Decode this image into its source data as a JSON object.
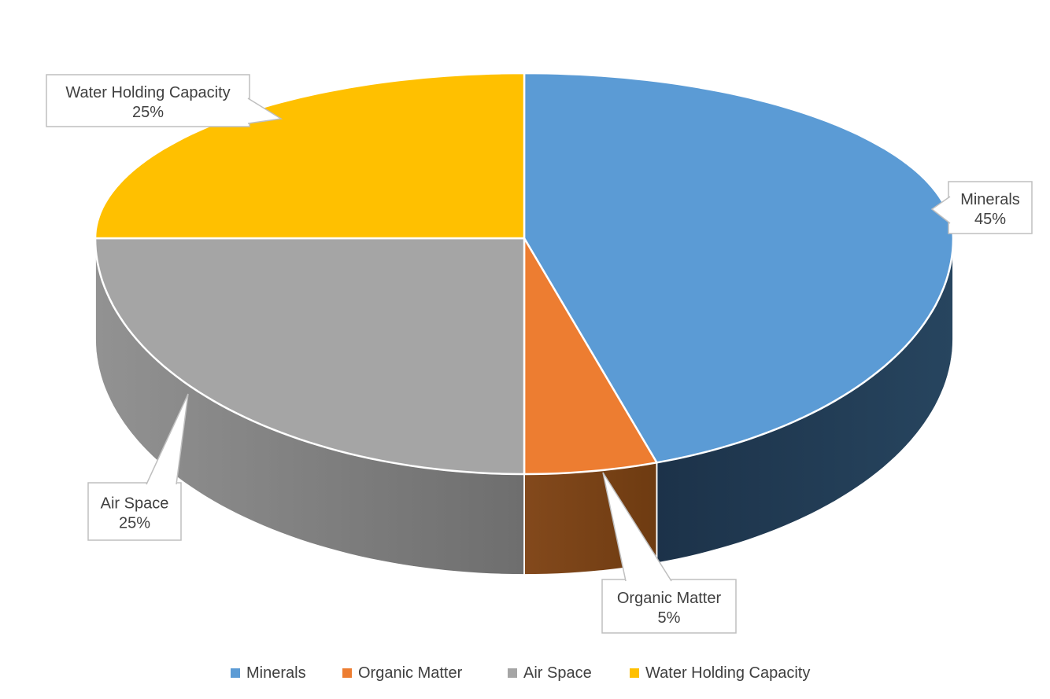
{
  "chart_data": {
    "type": "pie",
    "style": "3d",
    "title": "",
    "categories": [
      "Minerals",
      "Organic Matter",
      "Air Space",
      "Water Holding Capacity"
    ],
    "values": [
      45,
      5,
      25,
      25
    ],
    "value_unit": "%",
    "start_angle_deg": 0,
    "direction": "clockwise",
    "colors": [
      "#5B9BD5",
      "#ED7D31",
      "#A5A5A5",
      "#FFC000"
    ],
    "side_colors": [
      "#1F3850",
      "#7A441A",
      "#7E7E7E",
      null
    ],
    "data_labels": [
      {
        "category": "Minerals",
        "value_label": "45%"
      },
      {
        "category": "Organic Matter",
        "value_label": "5%"
      },
      {
        "category": "Air Space",
        "value_label": "25%"
      },
      {
        "category": "Water Holding Capacity",
        "value_label": "25%"
      }
    ],
    "legend": {
      "position": "bottom",
      "entries": [
        "Minerals",
        "Organic Matter",
        "Air Space",
        "Water Holding Capacity"
      ]
    },
    "label_text_color": "#404040",
    "label_border_color": "#BFBFBF",
    "separator_color": "#FFFFFF",
    "background": "#FFFFFF"
  }
}
